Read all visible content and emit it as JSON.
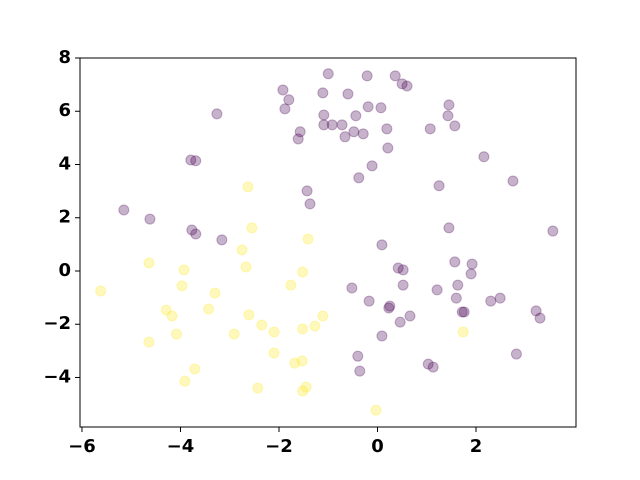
{
  "chart_data": {
    "type": "scatter",
    "xlim": [
      -6.04,
      4.03
    ],
    "ylim": [
      -5.86,
      8
    ],
    "xticks": [
      {
        "value": -6,
        "label": "−6"
      },
      {
        "value": -4,
        "label": "−4"
      },
      {
        "value": -2,
        "label": "−2"
      },
      0,
      2
    ],
    "yticks": [
      {
        "value": -4,
        "label": "−4"
      },
      {
        "value": -2,
        "label": "−2"
      },
      0,
      2,
      4,
      6,
      8
    ],
    "alpha": 0.3,
    "series": [
      {
        "color": "#440154",
        "x": [
          -1.0,
          -0.21,
          0.36,
          0.5,
          0.6,
          -1.92,
          -1.8,
          -0.6,
          -1.11,
          -3.26,
          -1.88,
          -0.19,
          0.07,
          1.45,
          -1.09,
          -0.44,
          1.43,
          -1.09,
          -0.92,
          -0.72,
          1.57,
          -1.57,
          -0.48,
          -0.29,
          0.19,
          1.07,
          -1.61,
          -0.66,
          0.21,
          -3.79,
          -3.69,
          2.16,
          -0.11,
          -0.38,
          1.25,
          2.75,
          -1.43,
          -1.37,
          -5.15,
          -4.62,
          1.45,
          -3.77,
          -3.69,
          -3.16,
          3.56,
          0.09,
          1.57,
          1.92,
          0.42,
          0.52,
          1.9,
          0.52,
          1.63,
          -0.52,
          1.21,
          1.6,
          -0.17,
          2.49,
          2.3,
          0.25,
          0.23,
          1.76,
          1.72,
          3.22,
          3.3,
          0.66,
          0.46,
          0.09,
          2.82,
          -0.4,
          1.03,
          1.13,
          -0.36
        ],
        "y": [
          7.41,
          7.33,
          7.33,
          7.03,
          6.95,
          6.8,
          6.43,
          6.65,
          6.69,
          5.9,
          6.09,
          6.17,
          6.13,
          6.24,
          5.86,
          5.83,
          5.83,
          5.49,
          5.49,
          5.49,
          5.45,
          5.23,
          5.23,
          5.15,
          5.34,
          5.34,
          4.96,
          5.04,
          4.62,
          4.17,
          4.14,
          4.29,
          3.95,
          3.5,
          3.2,
          3.38,
          3.01,
          2.52,
          2.29,
          1.95,
          1.62,
          1.54,
          1.39,
          1.17,
          1.5,
          0.98,
          0.34,
          0.26,
          0.11,
          0.04,
          -0.11,
          -0.53,
          -0.53,
          -0.64,
          -0.71,
          -1.02,
          -1.13,
          -1.02,
          -1.13,
          -1.32,
          -1.39,
          -1.54,
          -1.54,
          -1.5,
          -1.77,
          -1.69,
          -1.92,
          -2.44,
          -3.12,
          -3.2,
          -3.5,
          -3.61,
          -3.76
        ]
      },
      {
        "color": "#fde725",
        "x": [
          -2.63,
          -2.55,
          -1.41,
          -2.75,
          -4.64,
          -2.67,
          -3.93,
          -1.52,
          -5.62,
          -3.97,
          -1.76,
          -3.3,
          -4.29,
          -3.43,
          -4.17,
          -2.61,
          -1.11,
          -2.35,
          -1.27,
          -1.52,
          -4.08,
          -2.91,
          -2.1,
          1.74,
          -4.64,
          -2.1,
          -1.53,
          -1.68,
          -3.71,
          -3.91,
          -2.43,
          -1.45,
          -1.52,
          -0.03
        ],
        "y": [
          3.16,
          1.62,
          1.2,
          0.79,
          0.3,
          0.15,
          0.04,
          -0.04,
          -0.75,
          -0.56,
          -0.53,
          -0.83,
          -1.47,
          -1.43,
          -1.69,
          -1.65,
          -1.69,
          -2.03,
          -2.07,
          -2.18,
          -2.37,
          -2.37,
          -2.29,
          -2.29,
          -2.67,
          -3.08,
          -3.38,
          -3.46,
          -3.68,
          -4.14,
          -4.4,
          -4.36,
          -4.51,
          -5.23
        ]
      }
    ]
  }
}
